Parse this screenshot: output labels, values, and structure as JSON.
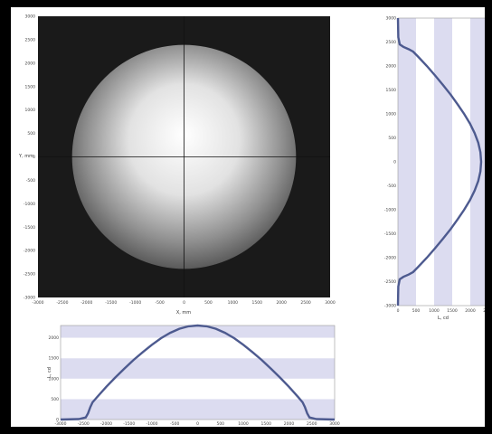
{
  "chart_data": [
    {
      "type": "heatmap",
      "title": "",
      "xlabel": "X, mm",
      "ylabel": "Y, mm",
      "xlim": [
        -3000,
        3000
      ],
      "ylim": [
        -3000,
        3000
      ],
      "x_ticks": [
        "-3000",
        "-2500",
        "-2000",
        "-1500",
        "-1000",
        "-500",
        "0",
        "500",
        "1000",
        "1500",
        "2000",
        "2500",
        "3000"
      ],
      "y_ticks": [
        "3000",
        "2500",
        "2000",
        "1500",
        "1000",
        "500",
        "0",
        "-500",
        "-1000",
        "-1500",
        "-2000",
        "-2500",
        "-3000"
      ],
      "spot": {
        "center": [
          0,
          0
        ],
        "radius": 2300,
        "edge_value": 0.3,
        "center_value": 1.0
      },
      "background": "#1a1a1a",
      "crosshair": true
    },
    {
      "type": "line",
      "title": "",
      "xlabel": "L, cd",
      "ylabel": "",
      "xlim": [
        0,
        2500
      ],
      "ylim": [
        -3000,
        3000
      ],
      "x_ticks": [
        "0",
        "500",
        "1000",
        "1500",
        "2000",
        "2500"
      ],
      "y_ticks": [
        "3000",
        "2500",
        "2000",
        "1500",
        "1000",
        "500",
        "0",
        "-500",
        "-1000",
        "-1500",
        "-2000",
        "-2500",
        "-3000"
      ],
      "background_bands": "alternating vertical",
      "series": [
        {
          "color": "#4d5a8f",
          "y": [
            3000,
            2600,
            2450,
            2400,
            2350,
            2300,
            2200,
            2000,
            1800,
            1600,
            1400,
            1200,
            1000,
            800,
            600,
            400,
            200,
            0,
            -200,
            -400,
            -600,
            -800,
            -1000,
            -1200,
            -1400,
            -1600,
            -1800,
            -2000,
            -2200,
            -2300,
            -2350,
            -2400,
            -2450,
            -2600,
            -3000
          ],
          "x": [
            0,
            10,
            50,
            150,
            300,
            420,
            550,
            800,
            1030,
            1250,
            1460,
            1650,
            1830,
            1990,
            2120,
            2220,
            2280,
            2300,
            2280,
            2220,
            2120,
            1990,
            1830,
            1650,
            1460,
            1250,
            1030,
            800,
            550,
            420,
            300,
            150,
            50,
            10,
            0
          ]
        }
      ]
    },
    {
      "type": "line",
      "title": "",
      "xlabel": "",
      "ylabel": "L, cd",
      "xlim": [
        -3000,
        3000
      ],
      "ylim": [
        0,
        2300
      ],
      "x_ticks": [
        "-3000",
        "-2500",
        "-2000",
        "-1500",
        "-1000",
        "-500",
        "0",
        "500",
        "1000",
        "1500",
        "2000",
        "2500",
        "3000"
      ],
      "y_ticks": [
        "0",
        "500",
        "1000",
        "1500",
        "2000"
      ],
      "background_bands": "alternating horizontal",
      "series": [
        {
          "color": "#4d5a8f",
          "x": [
            -3000,
            -2600,
            -2450,
            -2400,
            -2350,
            -2300,
            -2200,
            -2000,
            -1800,
            -1600,
            -1400,
            -1200,
            -1000,
            -800,
            -600,
            -400,
            -200,
            0,
            200,
            400,
            600,
            800,
            1000,
            1200,
            1400,
            1600,
            1800,
            2000,
            2200,
            2300,
            2350,
            2400,
            2450,
            2600,
            3000
          ],
          "y": [
            0,
            10,
            50,
            150,
            300,
            420,
            550,
            800,
            1030,
            1250,
            1460,
            1650,
            1830,
            1990,
            2120,
            2220,
            2280,
            2300,
            2280,
            2220,
            2120,
            1990,
            1830,
            1650,
            1460,
            1250,
            1030,
            800,
            550,
            420,
            300,
            150,
            50,
            10,
            0
          ]
        }
      ]
    }
  ]
}
